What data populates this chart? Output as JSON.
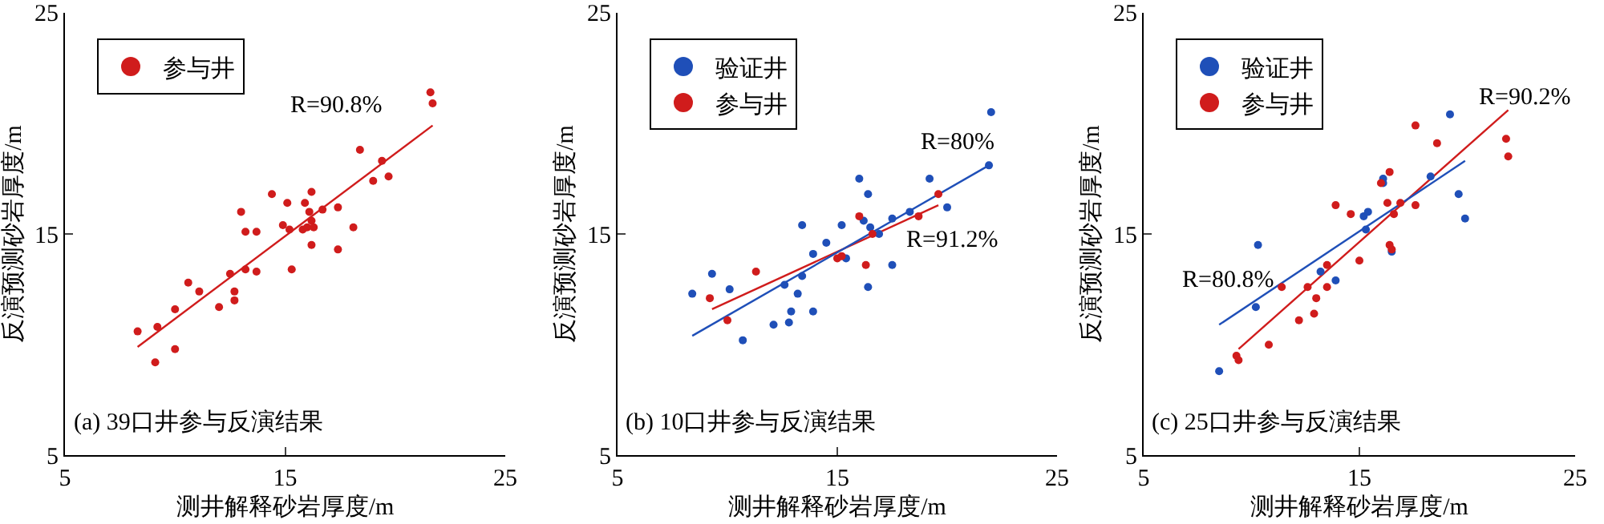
{
  "chart_data": [
    {
      "type": "scatter",
      "xlabel": "测井解释砂岩厚度/m",
      "ylabel": "反演预测砂岩厚度/m",
      "xlim": [
        5,
        25
      ],
      "xticks": [
        5,
        15,
        25
      ],
      "ylim": [
        5,
        25
      ],
      "yticks": [
        5,
        15,
        25
      ],
      "marker": "circle",
      "legend": "top left",
      "annotations": [
        "(a) 39口井参与反演结果"
      ],
      "series": [
        {
          "name": "参与井",
          "color": "#d01c1c",
          "x": [
            8.3,
            9.1,
            9.2,
            10.0,
            10.0,
            10.6,
            11.1,
            12.0,
            12.5,
            12.7,
            12.7,
            13.0,
            13.2,
            13.2,
            13.7,
            13.7,
            14.4,
            14.9,
            15.1,
            15.2,
            15.3,
            15.8,
            15.9,
            16.0,
            16.1,
            16.2,
            16.2,
            16.2,
            16.3,
            16.7,
            17.4,
            17.4,
            18.1,
            18.4,
            19.0,
            19.4,
            19.7,
            21.6,
            21.7
          ],
          "values": [
            10.6,
            9.2,
            10.8,
            11.6,
            9.8,
            12.8,
            12.4,
            11.7,
            13.2,
            12.4,
            12.0,
            16.0,
            15.1,
            13.4,
            15.1,
            13.3,
            16.8,
            15.4,
            16.4,
            15.2,
            13.4,
            15.2,
            16.4,
            15.3,
            16.0,
            16.9,
            15.6,
            14.5,
            15.3,
            16.1,
            14.3,
            16.2,
            15.3,
            18.8,
            17.4,
            18.3,
            17.6,
            21.4,
            20.9
          ]
        },
        {
          "type": "line",
          "name": "R=90.8%",
          "marker": "none",
          "color": "#d01c1c",
          "x": [
            8.3,
            21.7
          ],
          "values": [
            9.9,
            19.9
          ]
        }
      ]
    },
    {
      "type": "scatter",
      "xlabel": "测井解释砂岩厚度/m",
      "ylabel": "反演预测砂岩厚度/m",
      "xlim": [
        5,
        25
      ],
      "xticks": [
        5,
        15,
        25
      ],
      "ylim": [
        5,
        25
      ],
      "yticks": [
        5,
        15,
        25
      ],
      "marker": "circle",
      "legend": "top left",
      "annotations": [
        "(b) 10口井参与反演结果"
      ],
      "series": [
        {
          "name": "参与井",
          "color": "#d01c1c",
          "x": [
            9.2,
            10.0,
            11.3,
            15.0,
            15.2,
            16.0,
            16.3,
            16.6,
            18.7,
            19.6
          ],
          "values": [
            12.1,
            11.1,
            13.3,
            13.9,
            14.0,
            15.8,
            13.6,
            15.0,
            15.8,
            16.8
          ]
        },
        {
          "name": "验证井",
          "color": "#1f4fb8",
          "x": [
            8.4,
            9.3,
            10.1,
            10.7,
            12.1,
            12.6,
            12.8,
            12.9,
            13.2,
            13.4,
            13.4,
            13.9,
            13.9,
            14.5,
            15.2,
            15.4,
            16.0,
            16.2,
            16.4,
            16.5,
            16.9,
            17.5,
            17.5,
            16.4,
            18.3,
            19.2,
            20.0,
            22.0,
            21.9
          ],
          "values": [
            12.3,
            13.2,
            12.5,
            10.2,
            10.9,
            12.7,
            11.0,
            11.5,
            12.3,
            13.1,
            15.4,
            14.1,
            11.5,
            14.6,
            15.4,
            13.9,
            17.5,
            15.6,
            16.8,
            15.3,
            15.0,
            13.6,
            15.7,
            12.6,
            16.0,
            17.5,
            16.2,
            20.5,
            18.1
          ]
        },
        {
          "type": "line",
          "name": "R=91.2%",
          "marker": "none",
          "color": "#d01c1c",
          "x": [
            9.3,
            19.6
          ],
          "values": [
            11.6,
            16.3
          ]
        },
        {
          "type": "line",
          "name": "R=80%",
          "marker": "none",
          "color": "#1f4fb8",
          "x": [
            8.4,
            21.9
          ],
          "values": [
            10.4,
            18.1
          ]
        }
      ]
    },
    {
      "type": "scatter",
      "xlabel": "测井解释砂岩厚度/m",
      "ylabel": "反演预测砂岩厚度/m",
      "xlim": [
        5,
        25
      ],
      "xticks": [
        5,
        15,
        25
      ],
      "ylim": [
        5,
        25
      ],
      "yticks": [
        5,
        15,
        25
      ],
      "marker": "circle",
      "legend": "top left",
      "annotations": [
        "(c) 25口井参与反演结果"
      ],
      "series": [
        {
          "name": "参与井",
          "color": "#d01c1c",
          "x": [
            9.3,
            9.4,
            10.8,
            11.4,
            12.2,
            12.6,
            12.9,
            13.0,
            13.5,
            13.5,
            13.9,
            14.6,
            15.0,
            16.0,
            16.3,
            16.4,
            16.4,
            16.5,
            16.6,
            16.9,
            17.6,
            17.6,
            18.6,
            21.8,
            21.9
          ],
          "values": [
            9.5,
            9.3,
            10.0,
            12.6,
            11.1,
            12.6,
            11.4,
            12.1,
            13.6,
            12.6,
            16.3,
            15.9,
            13.8,
            17.3,
            16.4,
            17.8,
            14.5,
            14.3,
            15.9,
            16.4,
            19.9,
            16.3,
            19.1,
            19.3,
            18.5
          ]
        },
        {
          "name": "验证井",
          "color": "#1f4fb8",
          "x": [
            8.5,
            10.2,
            10.3,
            13.2,
            13.9,
            15.2,
            15.3,
            15.4,
            16.1,
            16.1,
            16.5,
            18.3,
            19.2,
            19.6,
            19.9
          ],
          "values": [
            8.8,
            11.7,
            14.5,
            13.3,
            12.9,
            15.8,
            15.2,
            16.0,
            17.5,
            17.3,
            14.2,
            17.6,
            20.4,
            16.8,
            15.7
          ]
        },
        {
          "type": "line",
          "name": "R=90.2%",
          "marker": "none",
          "color": "#d01c1c",
          "x": [
            9.4,
            21.9
          ],
          "values": [
            9.8,
            20.6
          ]
        },
        {
          "type": "line",
          "name": "R=80.8%",
          "marker": "none",
          "color": "#1f4fb8",
          "x": [
            8.5,
            19.9
          ],
          "values": [
            10.9,
            18.3
          ]
        }
      ]
    }
  ]
}
